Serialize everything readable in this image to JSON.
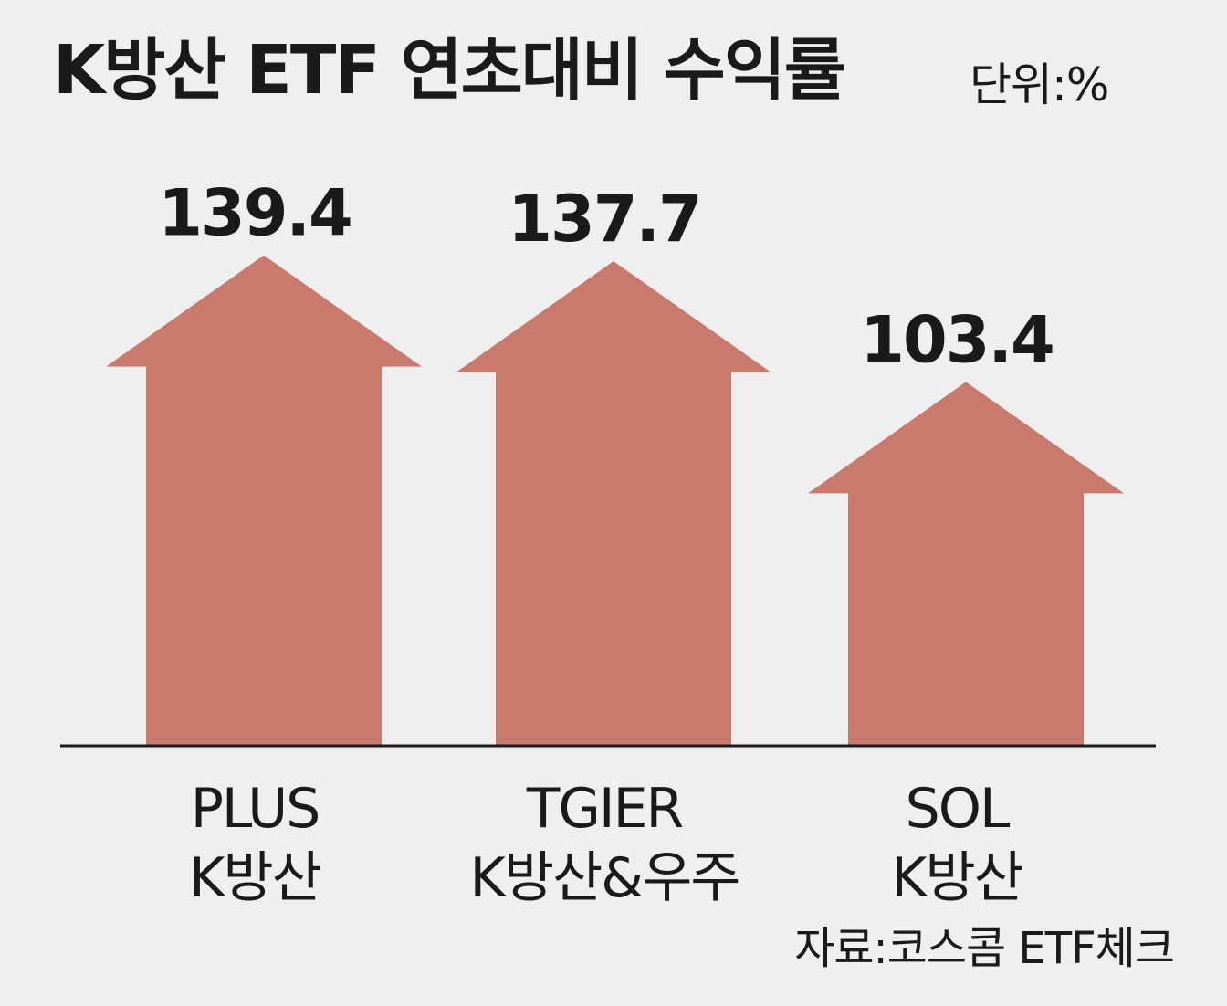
{
  "header": {
    "title": "K방산 ETF 연초대비 수익률",
    "unit": "단위:%"
  },
  "footer": {
    "source": "자료:코스콤 ETF체크"
  },
  "colors": {
    "arrow": "#c97a6c",
    "axis": "#1a1a1a",
    "text": "#1a1a1a",
    "background": "#efefef"
  },
  "chart_data": {
    "type": "bar",
    "title": "K방산 ETF 연초대비 수익률",
    "unit": "단위:%",
    "categories": [
      [
        "PLUS",
        "K방산"
      ],
      [
        "TGIER",
        "K방산&우주"
      ],
      [
        "SOL",
        "K방산"
      ]
    ],
    "values": [
      139.4,
      137.7,
      103.4
    ],
    "value_labels": [
      "139.4",
      "137.7",
      "103.4"
    ],
    "grid": false,
    "legend": "none"
  }
}
